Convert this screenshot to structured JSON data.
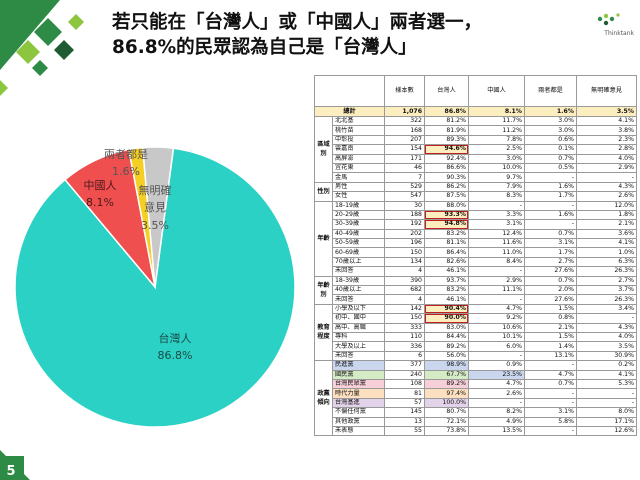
{
  "title": {
    "line1": "若只能在「台灣人」或「中國人」兩者選一，",
    "line2": "86.8%的民眾認為自己是「台灣人」"
  },
  "logo_text": "Thinktank",
  "page_number": "5",
  "colors": {
    "taiwanese": "#2bd1c4",
    "chinese": "#ef4f4f",
    "both": "#f6cf24",
    "no_opinion": "#c8c8c8",
    "brand_green": "#2e8b45"
  },
  "chart_data": {
    "type": "pie",
    "slices": [
      {
        "label": "台灣人",
        "value": 86.8,
        "pct": "86.8%"
      },
      {
        "label": "中國人",
        "value": 8.1,
        "pct": "8.1%"
      },
      {
        "label": "兩者都是",
        "value": 1.6,
        "pct": "1.6%"
      },
      {
        "label": "無明確意見",
        "label_lines": [
          "無明確",
          "意見"
        ],
        "value": 3.5,
        "pct": "3.5%"
      }
    ]
  },
  "table": {
    "headers": [
      "樣本數",
      "台灣人",
      "中國人",
      "兩者都是",
      "無明確意見"
    ],
    "total": {
      "label": "總計",
      "cells": [
        "1,076",
        "86.8%",
        "8.1%",
        "1.6%",
        "3.5%"
      ]
    },
    "groups": [
      {
        "name": "區域別",
        "rows": [
          {
            "label": "北北基",
            "cells": [
              "322",
              "81.2%",
              "11.7%",
              "3.0%",
              "4.1%"
            ]
          },
          {
            "label": "桃竹苗",
            "cells": [
              "168",
              "81.9%",
              "11.2%",
              "3.0%",
              "3.8%"
            ]
          },
          {
            "label": "中彰投",
            "cells": [
              "207",
              "89.3%",
              "7.8%",
              "0.6%",
              "2.3%"
            ]
          },
          {
            "label": "雲嘉南",
            "cells": [
              "154",
              "94.6%",
              "2.5%",
              "0.1%",
              "2.8%"
            ]
          },
          {
            "label": "高屏澎",
            "cells": [
              "171",
              "92.4%",
              "3.0%",
              "0.7%",
              "4.0%"
            ]
          },
          {
            "label": "宜花東",
            "cells": [
              "46",
              "86.6%",
              "10.0%",
              "0.5%",
              "2.9%"
            ]
          },
          {
            "label": "金馬",
            "cells": [
              "7",
              "90.3%",
              "9.7%",
              "-",
              "-"
            ]
          }
        ]
      },
      {
        "name": "性別",
        "rows": [
          {
            "label": "男性",
            "cells": [
              "529",
              "86.2%",
              "7.9%",
              "1.6%",
              "4.3%"
            ]
          },
          {
            "label": "女性",
            "cells": [
              "547",
              "87.5%",
              "8.3%",
              "1.7%",
              "2.6%"
            ]
          }
        ]
      },
      {
        "name": "年齡",
        "rows": [
          {
            "label": "18-19歲",
            "cells": [
              "30",
              "88.0%",
              "-",
              "-",
              "12.0%"
            ]
          },
          {
            "label": "20-29歲",
            "cells": [
              "188",
              "93.3%",
              "3.3%",
              "1.6%",
              "1.8%"
            ]
          },
          {
            "label": "30-39歲",
            "cells": [
              "192",
              "94.8%",
              "3.1%",
              "-",
              "2.1%"
            ]
          },
          {
            "label": "40-49歲",
            "cells": [
              "202",
              "83.2%",
              "12.4%",
              "0.7%",
              "3.6%"
            ]
          },
          {
            "label": "50-59歲",
            "cells": [
              "196",
              "81.1%",
              "11.6%",
              "3.1%",
              "4.1%"
            ]
          },
          {
            "label": "60-69歲",
            "cells": [
              "150",
              "86.4%",
              "11.0%",
              "1.7%",
              "1.0%"
            ]
          },
          {
            "label": "70歲以上",
            "cells": [
              "134",
              "82.6%",
              "8.4%",
              "2.7%",
              "6.3%"
            ]
          },
          {
            "label": "未回答",
            "cells": [
              "4",
              "46.1%",
              "-",
              "27.6%",
              "26.3%"
            ]
          }
        ]
      },
      {
        "name": "年齡別",
        "rows": [
          {
            "label": "18-39歲",
            "cells": [
              "390",
              "93.7%",
              "2.9%",
              "0.7%",
              "2.7%"
            ]
          },
          {
            "label": "40歲以上",
            "cells": [
              "682",
              "83.2%",
              "11.1%",
              "2.0%",
              "3.7%"
            ]
          },
          {
            "label": "未回答",
            "cells": [
              "4",
              "46.1%",
              "-",
              "27.6%",
              "26.3%"
            ]
          }
        ]
      },
      {
        "name": "教育程度",
        "rows": [
          {
            "label": "小學及以下",
            "cells": [
              "142",
              "90.4%",
              "4.7%",
              "1.5%",
              "3.4%"
            ]
          },
          {
            "label": "初中、國中",
            "cells": [
              "150",
              "90.0%",
              "9.2%",
              "0.8%",
              "-"
            ]
          },
          {
            "label": "高中、高職",
            "cells": [
              "333",
              "83.0%",
              "10.6%",
              "2.1%",
              "4.3%"
            ]
          },
          {
            "label": "專科",
            "cells": [
              "110",
              "84.4%",
              "10.1%",
              "1.5%",
              "4.0%"
            ]
          },
          {
            "label": "大學及以上",
            "cells": [
              "336",
              "89.2%",
              "6.0%",
              "1.4%",
              "3.5%"
            ]
          },
          {
            "label": "未回答",
            "cells": [
              "6",
              "56.0%",
              "-",
              "13.1%",
              "30.9%"
            ]
          }
        ]
      },
      {
        "name": "政黨傾向",
        "rows": [
          {
            "label": "民進黨",
            "cells": [
              "377",
              "98.9%",
              "0.9%",
              "-",
              "0.2%"
            ]
          },
          {
            "label": "國民黨",
            "cells": [
              "240",
              "67.7%",
              "23.5%",
              "4.7%",
              "4.1%"
            ]
          },
          {
            "label": "台灣民眾黨",
            "cells": [
              "108",
              "89.2%",
              "4.7%",
              "0.7%",
              "5.3%"
            ]
          },
          {
            "label": "時代力量",
            "cells": [
              "81",
              "97.4%",
              "2.6%",
              "-",
              "-"
            ]
          },
          {
            "label": "台灣基進",
            "cells": [
              "57",
              "100.0%",
              "-",
              "-",
              "-"
            ]
          },
          {
            "label": "不偏任何黨",
            "cells": [
              "145",
              "80.7%",
              "8.2%",
              "3.1%",
              "8.0%"
            ]
          },
          {
            "label": "其他政黨",
            "cells": [
              "13",
              "72.1%",
              "4.9%",
              "5.8%",
              "17.1%"
            ]
          },
          {
            "label": "未表態",
            "cells": [
              "55",
              "73.8%",
              "13.5%",
              "-",
              "12.6%"
            ]
          }
        ]
      }
    ]
  }
}
